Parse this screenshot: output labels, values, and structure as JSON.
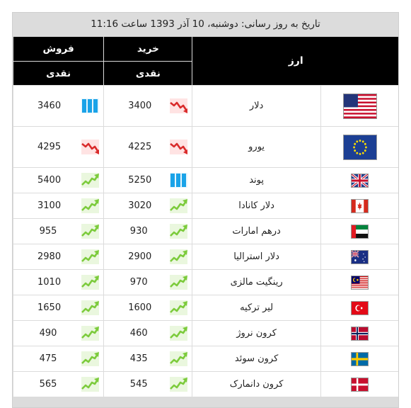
{
  "date_text": "تاریخ به روز رسانی: دوشنبه، 10 آذر 1393 ساعت 11:16",
  "headers": {
    "currency": "ارز",
    "buy": "خرید",
    "sell": "فروش",
    "buy_sub": "نقدی",
    "sell_sub": "نقدی"
  },
  "rates": [
    {
      "name": "دلار",
      "flag": "us-flag-icon",
      "buy": "3400",
      "buy_trend": "down",
      "sell": "3460",
      "sell_trend": "flat"
    },
    {
      "name": "یورو",
      "flag": "eu-flag-icon",
      "buy": "4225",
      "buy_trend": "down",
      "sell": "4295",
      "sell_trend": "down"
    },
    {
      "name": "پوند",
      "flag": "uk-flag-icon",
      "buy": "5250",
      "buy_trend": "flat",
      "sell": "5400",
      "sell_trend": "up"
    },
    {
      "name": "دلار کانادا",
      "flag": "canada-flag-icon",
      "buy": "3020",
      "buy_trend": "up",
      "sell": "3100",
      "sell_trend": "up"
    },
    {
      "name": "درهم امارات",
      "flag": "uae-flag-icon",
      "buy": "930",
      "buy_trend": "up",
      "sell": "955",
      "sell_trend": "up"
    },
    {
      "name": "دلار استرالیا",
      "flag": "australia-flag-icon",
      "buy": "2900",
      "buy_trend": "up",
      "sell": "2980",
      "sell_trend": "up"
    },
    {
      "name": "رینگیت مالزی",
      "flag": "malaysia-flag-icon",
      "buy": "970",
      "buy_trend": "up",
      "sell": "1010",
      "sell_trend": "up"
    },
    {
      "name": "لیر ترکیه",
      "flag": "turkey-flag-icon",
      "buy": "1600",
      "buy_trend": "up",
      "sell": "1650",
      "sell_trend": "up"
    },
    {
      "name": "کرون نروژ",
      "flag": "norway-flag-icon",
      "buy": "460",
      "buy_trend": "up",
      "sell": "490",
      "sell_trend": "up"
    },
    {
      "name": "کرون سوئد",
      "flag": "sweden-flag-icon",
      "buy": "435",
      "buy_trend": "up",
      "sell": "475",
      "sell_trend": "up"
    },
    {
      "name": "کرون دانمارک",
      "flag": "denmark-flag-icon",
      "buy": "545",
      "buy_trend": "up",
      "sell": "565",
      "sell_trend": "up"
    }
  ]
}
